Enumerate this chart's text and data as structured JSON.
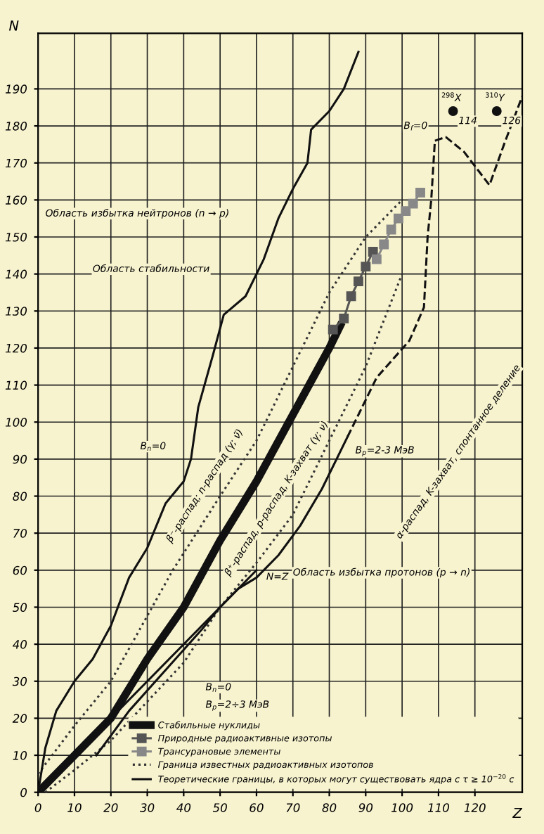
{
  "chart_data": {
    "type": "line",
    "xlabel": "Z",
    "ylabel": "N",
    "xlim": [
      0,
      133
    ],
    "ylim": [
      0,
      205
    ],
    "xticks": [
      0,
      10,
      20,
      30,
      40,
      50,
      60,
      70,
      80,
      90,
      100,
      110,
      120
    ],
    "yticks": [
      0,
      10,
      20,
      30,
      40,
      50,
      60,
      70,
      80,
      90,
      100,
      110,
      120,
      130,
      140,
      150,
      160,
      170,
      180,
      190
    ],
    "grid": true,
    "legend": "bottom right",
    "series": [
      {
        "name": "Стабильные нуклиды",
        "color": "#111111",
        "x": [
          1,
          10,
          20,
          30,
          40,
          50,
          60,
          70,
          80,
          83
        ],
        "values": [
          1,
          10,
          20,
          36,
          50,
          68,
          84,
          102,
          120,
          126
        ]
      },
      {
        "name": "Природные радиоактивные изотопы",
        "color": "#555555",
        "marker": "square",
        "x": [
          81,
          84,
          86,
          88,
          90,
          92
        ],
        "values": [
          125,
          128,
          134,
          138,
          142,
          146
        ]
      },
      {
        "name": "Трансурановые элементы",
        "color": "#888888",
        "marker": "square",
        "x": [
          93,
          95,
          97,
          99,
          101,
          103,
          105
        ],
        "values": [
          144,
          148,
          152,
          155,
          157,
          159,
          162
        ]
      },
      {
        "name": "Граница известных радиоактивных изотопов",
        "color": "#333333",
        "line_style": "dotted",
        "x": [
          0,
          10,
          20,
          37,
          50,
          60,
          70,
          80,
          90,
          100
        ],
        "values": [
          5,
          18,
          30,
          60,
          80,
          95,
          115,
          135,
          150,
          160
        ]
      },
      {
        "color": "#333333",
        "line_style": "dotted",
        "x": [
          2,
          10,
          20,
          40,
          50,
          60,
          70,
          80,
          90,
          100
        ],
        "values": [
          0,
          6,
          14,
          35,
          50,
          62,
          75,
          95,
          115,
          140
        ]
      },
      {
        "name": "Теоретические границы, в которых могут существовать ядра с τ ≥ 10$^{−20}$ с",
        "color": "#111111",
        "x": [
          0,
          2,
          5,
          10,
          15,
          20,
          25,
          30,
          35,
          40,
          42,
          44,
          48,
          51,
          57,
          62,
          66,
          70,
          74,
          75,
          80,
          84,
          88
        ],
        "values": [
          0,
          12,
          22,
          30,
          36,
          45,
          58,
          66,
          78,
          84,
          90,
          104,
          118,
          129,
          134,
          144,
          155,
          163,
          170,
          179,
          184,
          190,
          200
        ]
      },
      {
        "color": "#111111",
        "x": [
          16,
          25,
          35,
          45,
          50,
          55,
          60,
          66,
          72,
          78,
          85
        ],
        "values": [
          10,
          22,
          33,
          44,
          50,
          55,
          58,
          64,
          72,
          82,
          96
        ]
      },
      {
        "color": "#111111",
        "line_style": "dashed",
        "x": [
          85,
          93,
          102,
          106,
          107,
          108,
          109,
          112,
          117,
          124,
          128,
          133
        ],
        "values": [
          96,
          112,
          122,
          131,
          150,
          160,
          176,
          177,
          173,
          164,
          175,
          188
        ]
      },
      {
        "color": "#111111",
        "x": [
          0,
          60
        ],
        "values": [
          0,
          60
        ]
      },
      {
        "type": "scatter",
        "color": "#111111",
        "marker": "circle",
        "x": [
          126,
          114
        ],
        "values": [
          184,
          184
        ]
      }
    ],
    "annotations": [
      {
        "text": "$^{310}$Y",
        "x": 126,
        "y": 184
      },
      "126",
      {
        "text": "$^{298}$X",
        "x": 114,
        "y": 184
      },
      "114",
      {
        "text": "B$_{f}$=0",
        "x": 109,
        "y": 176
      },
      {
        "text": "B$_{n}$=0",
        "x": 42,
        "y": 90
      },
      {
        "text": "B$_{p}$=2-3 МэВ",
        "x": 85,
        "y": 96
      },
      {
        "text": "N=Z",
        "x": 60,
        "y": 60
      },
      "Область стабильности",
      "Область избытка нейтронов (n → p)",
      "Область избытка протонов (p → n)",
      "β⁻-распад; n-распад (γ; ν̃)",
      "β⁺-распад, p-распад, K-захват (γ; ν)",
      "α-распад, K-захват, спонтанное деление",
      "B$_{n}$=0",
      "B$_{p}$=2÷3 МэВ"
    ]
  }
}
